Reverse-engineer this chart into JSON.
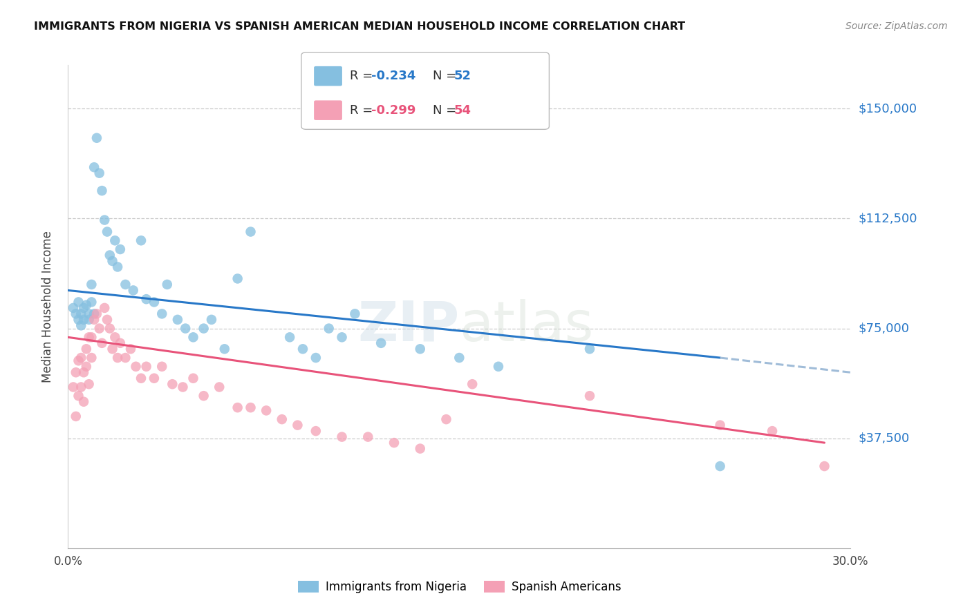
{
  "title": "IMMIGRANTS FROM NIGERIA VS SPANISH AMERICAN MEDIAN HOUSEHOLD INCOME CORRELATION CHART",
  "source": "Source: ZipAtlas.com",
  "ylabel": "Median Household Income",
  "ylim": [
    0,
    165000
  ],
  "xlim": [
    0.0,
    0.3
  ],
  "watermark": "ZIPatlas",
  "legend_r1": "R = -0.234",
  "legend_n1": "N = 52",
  "legend_r2": "R = -0.299",
  "legend_n2": "N = 54",
  "legend_label1": "Immigrants from Nigeria",
  "legend_label2": "Spanish Americans",
  "blue_color": "#85bfe0",
  "pink_color": "#f4a0b5",
  "trendline_blue": "#2878c8",
  "trendline_pink": "#e8537a",
  "trendline_dashed_color": "#a0bcd8",
  "ytick_vals": [
    37500,
    75000,
    112500,
    150000
  ],
  "nigeria_x": [
    0.002,
    0.003,
    0.004,
    0.004,
    0.005,
    0.005,
    0.006,
    0.006,
    0.007,
    0.008,
    0.008,
    0.009,
    0.009,
    0.01,
    0.01,
    0.011,
    0.012,
    0.013,
    0.014,
    0.015,
    0.016,
    0.017,
    0.018,
    0.019,
    0.02,
    0.022,
    0.025,
    0.028,
    0.03,
    0.033,
    0.036,
    0.038,
    0.042,
    0.045,
    0.048,
    0.052,
    0.055,
    0.06,
    0.065,
    0.07,
    0.085,
    0.09,
    0.095,
    0.1,
    0.105,
    0.11,
    0.12,
    0.135,
    0.15,
    0.165,
    0.2,
    0.25
  ],
  "nigeria_y": [
    82000,
    80000,
    84000,
    78000,
    80000,
    76000,
    82000,
    78000,
    83000,
    80000,
    78000,
    84000,
    90000,
    130000,
    80000,
    140000,
    128000,
    122000,
    112000,
    108000,
    100000,
    98000,
    105000,
    96000,
    102000,
    90000,
    88000,
    105000,
    85000,
    84000,
    80000,
    90000,
    78000,
    75000,
    72000,
    75000,
    78000,
    68000,
    92000,
    108000,
    72000,
    68000,
    65000,
    75000,
    72000,
    80000,
    70000,
    68000,
    65000,
    62000,
    68000,
    28000
  ],
  "spanish_x": [
    0.002,
    0.003,
    0.003,
    0.004,
    0.004,
    0.005,
    0.005,
    0.006,
    0.006,
    0.007,
    0.007,
    0.008,
    0.008,
    0.009,
    0.009,
    0.01,
    0.011,
    0.012,
    0.013,
    0.014,
    0.015,
    0.016,
    0.017,
    0.018,
    0.019,
    0.02,
    0.022,
    0.024,
    0.026,
    0.028,
    0.03,
    0.033,
    0.036,
    0.04,
    0.044,
    0.048,
    0.052,
    0.058,
    0.065,
    0.07,
    0.076,
    0.082,
    0.088,
    0.095,
    0.105,
    0.115,
    0.125,
    0.135,
    0.145,
    0.155,
    0.2,
    0.25,
    0.27,
    0.29
  ],
  "spanish_y": [
    55000,
    60000,
    45000,
    64000,
    52000,
    65000,
    55000,
    60000,
    50000,
    68000,
    62000,
    72000,
    56000,
    65000,
    72000,
    78000,
    80000,
    75000,
    70000,
    82000,
    78000,
    75000,
    68000,
    72000,
    65000,
    70000,
    65000,
    68000,
    62000,
    58000,
    62000,
    58000,
    62000,
    56000,
    55000,
    58000,
    52000,
    55000,
    48000,
    48000,
    47000,
    44000,
    42000,
    40000,
    38000,
    38000,
    36000,
    34000,
    44000,
    56000,
    52000,
    42000,
    40000,
    28000
  ]
}
